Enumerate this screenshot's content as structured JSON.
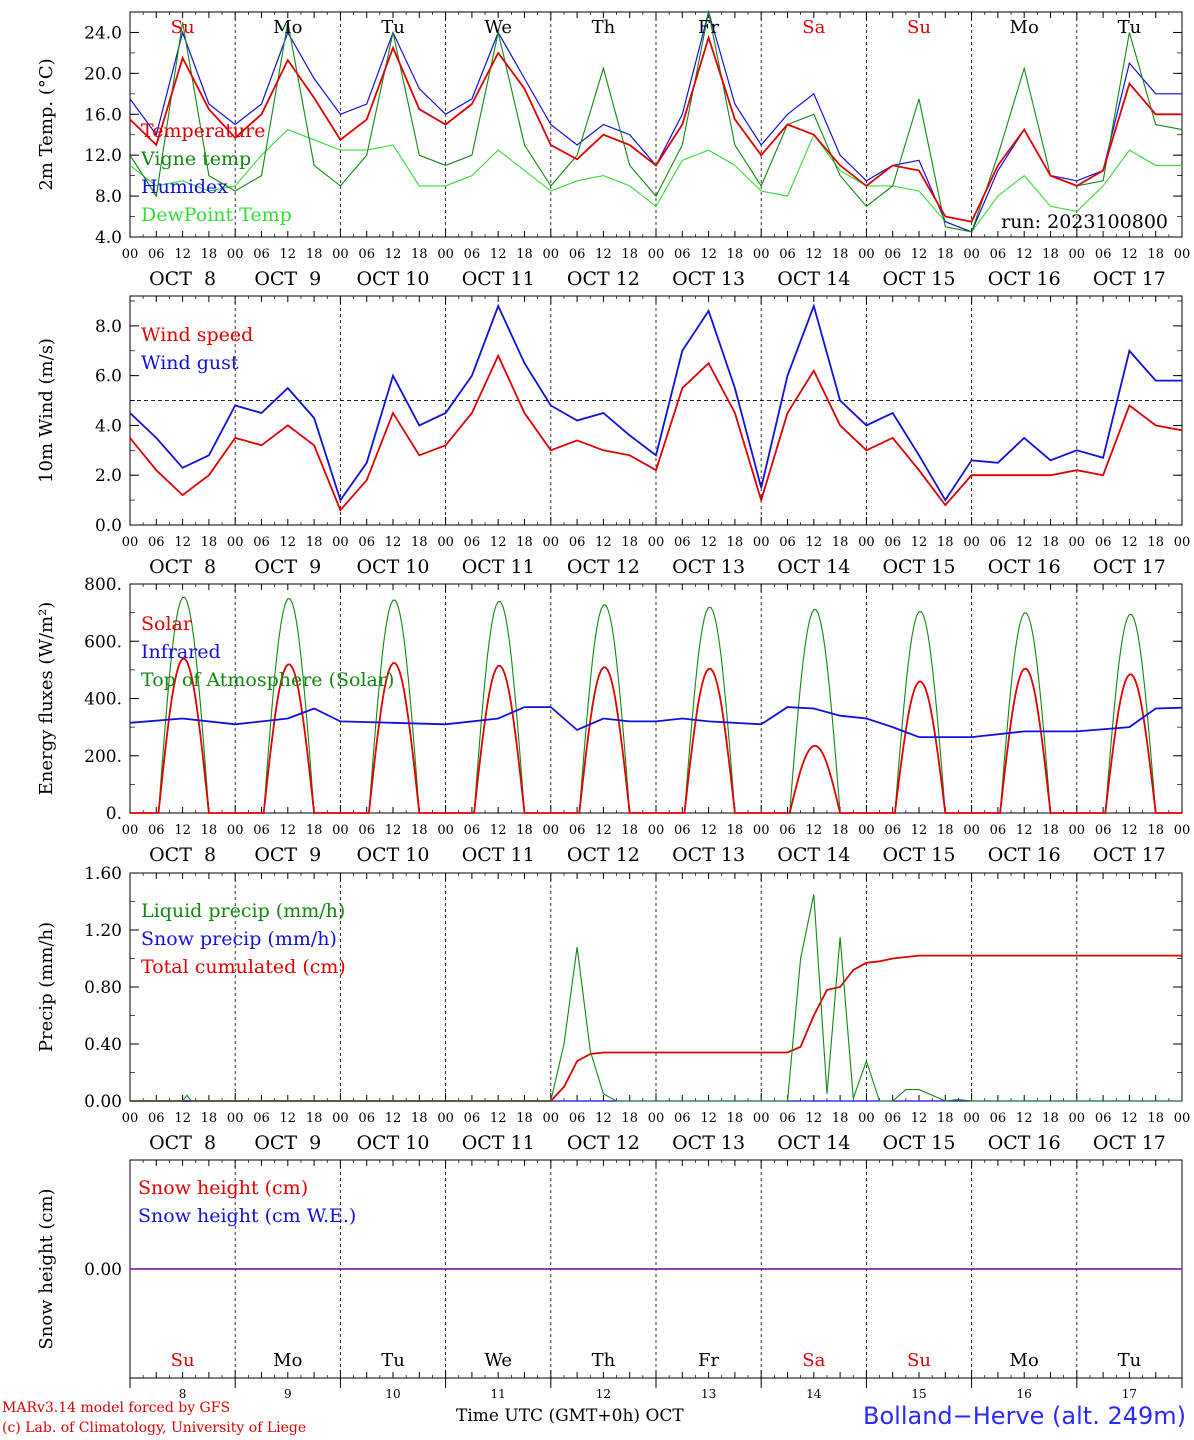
{
  "colors": {
    "red": "#e00000",
    "green": "#118811",
    "blue": "#1010dd",
    "lightgreen": "#33dd33",
    "purple": "#8822aa",
    "black": "#000000",
    "station": "#2a2aff"
  },
  "time_axis": {
    "hour_ticks": [
      "00",
      "06",
      "12",
      "18"
    ],
    "date_labels": [
      "OCT  8",
      "OCT  9",
      "OCT 10",
      "OCT 11",
      "OCT 12",
      "OCT 13",
      "OCT 14",
      "OCT 15",
      "OCT 16",
      "OCT 17"
    ],
    "weekdays": [
      "Su",
      "Mo",
      "Tu",
      "We",
      "Th",
      "Fr",
      "Sa",
      "Su",
      "Mo",
      "Tu"
    ],
    "weekday_colors": [
      "red",
      "black",
      "black",
      "black",
      "black",
      "black",
      "red",
      "red",
      "black",
      "black"
    ],
    "day_numbers": [
      "8",
      "9",
      "10",
      "11",
      "12",
      "13",
      "14",
      "15",
      "16",
      "17"
    ]
  },
  "chart_data": [
    {
      "type": "line",
      "id": "temp",
      "ylabel": "2m Temp. (°C)",
      "ylim": [
        4,
        26
      ],
      "yticks": [
        4,
        8,
        12,
        16,
        20,
        24
      ],
      "ytick_labels": [
        "4.0",
        "8.0",
        "12.0",
        "16.0",
        "20.0",
        "24.0"
      ],
      "annotation": "run: 2023100800",
      "x_unit": "hours since 2023-10-08 00 UTC",
      "series": [
        {
          "name": "Temperature",
          "color": "red",
          "x": [
            0,
            6,
            12,
            18,
            24,
            30,
            36,
            42,
            48,
            54,
            60,
            66,
            72,
            78,
            84,
            90,
            96,
            102,
            108,
            114,
            120,
            126,
            132,
            138,
            144,
            150,
            156,
            162,
            168,
            174,
            180,
            186,
            192,
            198,
            204,
            210,
            216,
            222,
            228,
            234,
            240
          ],
          "y": [
            15.5,
            13,
            21.5,
            16.5,
            13.7,
            16,
            21.3,
            17.6,
            13.5,
            15.5,
            22.5,
            16.5,
            15,
            17,
            22,
            18.5,
            13,
            11.6,
            14,
            13,
            11,
            15,
            23.5,
            15.5,
            12,
            15,
            14,
            11,
            9,
            11,
            10.5,
            6,
            5.5,
            11,
            14.5,
            10,
            9,
            10.5,
            19,
            16,
            16
          ]
        },
        {
          "name": "Vigne temp",
          "color": "green",
          "x": [
            0,
            6,
            12,
            18,
            24,
            30,
            36,
            42,
            48,
            54,
            60,
            66,
            72,
            78,
            84,
            90,
            96,
            102,
            108,
            114,
            120,
            126,
            132,
            138,
            144,
            150,
            156,
            162,
            168,
            174,
            180,
            186,
            192,
            198,
            204,
            210,
            216,
            222,
            228,
            234,
            240
          ],
          "y": [
            12,
            8,
            25,
            10,
            8.5,
            10,
            25,
            11,
            9,
            12,
            24,
            12,
            11,
            12,
            24,
            13,
            9,
            12,
            20.5,
            11,
            8,
            13,
            26,
            13,
            9,
            15,
            16,
            10,
            7,
            9,
            17.5,
            5,
            4.5,
            12,
            20.5,
            10,
            9,
            9.5,
            24,
            15,
            14.5
          ]
        },
        {
          "name": "Humidex",
          "color": "blue",
          "x": [
            0,
            6,
            12,
            18,
            24,
            30,
            36,
            42,
            48,
            54,
            60,
            66,
            72,
            78,
            84,
            90,
            96,
            102,
            108,
            114,
            120,
            126,
            132,
            138,
            144,
            150,
            156,
            162,
            168,
            174,
            180,
            186,
            192,
            198,
            204,
            210,
            216,
            222,
            228,
            234,
            240
          ],
          "y": [
            17.5,
            14,
            24,
            17,
            15,
            17,
            24,
            19.5,
            16,
            17,
            24,
            18.5,
            16,
            17.5,
            24,
            19.5,
            15,
            13,
            15,
            14,
            11,
            16,
            26,
            17,
            13,
            16,
            18,
            12,
            9.5,
            11,
            11.5,
            5.5,
            4.5,
            10.5,
            14.5,
            10,
            9.5,
            10.5,
            21,
            18,
            18
          ]
        },
        {
          "name": "DewPoint Temp",
          "color": "lightgreen",
          "x": [
            0,
            6,
            12,
            18,
            24,
            30,
            36,
            42,
            48,
            54,
            60,
            66,
            72,
            78,
            84,
            90,
            96,
            102,
            108,
            114,
            120,
            126,
            132,
            138,
            144,
            150,
            156,
            162,
            168,
            174,
            180,
            186,
            192,
            198,
            204,
            210,
            216,
            222,
            228,
            234,
            240
          ],
          "y": [
            11,
            9,
            9.5,
            8.5,
            9,
            12,
            14.5,
            13.5,
            12.5,
            12.5,
            13,
            9,
            9,
            10,
            12.5,
            10.5,
            8.5,
            9.5,
            10,
            9,
            7,
            11.5,
            12.5,
            11,
            8.5,
            8,
            14,
            10.5,
            9,
            9,
            8.5,
            5.5,
            4.5,
            8,
            10,
            7,
            6.5,
            9,
            12.5,
            11,
            11
          ]
        }
      ]
    },
    {
      "type": "line",
      "id": "wind",
      "ylabel": "10m Wind (m/s)",
      "ylim": [
        0,
        9.2
      ],
      "yticks": [
        0,
        2,
        4,
        6,
        8
      ],
      "ytick_labels": [
        "0.0",
        "2.0",
        "4.0",
        "6.0",
        "8.0"
      ],
      "reference_line": 5,
      "x_unit": "hours since 2023-10-08 00 UTC",
      "series": [
        {
          "name": "Wind speed",
          "color": "red",
          "x": [
            0,
            6,
            12,
            18,
            24,
            30,
            36,
            42,
            48,
            54,
            60,
            66,
            72,
            78,
            84,
            90,
            96,
            102,
            108,
            114,
            120,
            126,
            132,
            138,
            144,
            150,
            156,
            162,
            168,
            174,
            180,
            186,
            192,
            198,
            204,
            210,
            216,
            222,
            228,
            234,
            240
          ],
          "y": [
            3.5,
            2.2,
            1.2,
            2,
            3.5,
            3.2,
            4,
            3.2,
            0.6,
            1.8,
            4.5,
            2.8,
            3.2,
            4.5,
            6.8,
            4.5,
            3,
            3.4,
            3,
            2.8,
            2.2,
            5.5,
            6.5,
            4.5,
            1,
            4.5,
            6.2,
            4,
            3,
            3.5,
            2.2,
            0.8,
            2,
            2,
            2,
            2,
            2.2,
            2,
            4.8,
            4,
            3.8
          ]
        },
        {
          "name": "Wind gust",
          "color": "blue",
          "x": [
            0,
            6,
            12,
            18,
            24,
            30,
            36,
            42,
            48,
            54,
            60,
            66,
            72,
            78,
            84,
            90,
            96,
            102,
            108,
            114,
            120,
            126,
            132,
            138,
            144,
            150,
            156,
            162,
            168,
            174,
            180,
            186,
            192,
            198,
            204,
            210,
            216,
            222,
            228,
            234,
            240
          ],
          "y": [
            4.5,
            3.5,
            2.3,
            2.8,
            4.8,
            4.5,
            5.5,
            4.3,
            1,
            2.5,
            6,
            4,
            4.5,
            6,
            8.8,
            6.5,
            4.8,
            4.2,
            4.5,
            3.6,
            2.8,
            7,
            8.6,
            5.5,
            1.5,
            6,
            8.8,
            5,
            4,
            4.5,
            2.8,
            1,
            2.6,
            2.5,
            3.5,
            2.6,
            3,
            2.7,
            7,
            5.8,
            5.8
          ]
        }
      ]
    },
    {
      "type": "line",
      "id": "flux",
      "ylabel": "Energy fluxes (W/m²)",
      "ylim": [
        0,
        800
      ],
      "yticks": [
        0,
        200,
        400,
        600,
        800
      ],
      "ytick_labels": [
        "0.",
        "200.",
        "400.",
        "600.",
        "800."
      ],
      "x_unit": "hours since 2023-10-08 00 UTC",
      "diurnal": {
        "sunrise_hour": 6.5,
        "sunset_hour": 18,
        "top_of_atmosphere_peak": [
          755,
          750,
          745,
          740,
          728,
          720,
          712,
          705,
          700,
          695
        ],
        "solar_peak": [
          540,
          520,
          525,
          515,
          510,
          505,
          235,
          460,
          505,
          485
        ]
      },
      "series": [
        {
          "name": "Solar",
          "color": "red"
        },
        {
          "name": "Infrared",
          "color": "blue",
          "x": [
            0,
            12,
            24,
            36,
            42,
            48,
            60,
            72,
            84,
            90,
            96,
            102,
            108,
            114,
            120,
            126,
            132,
            144,
            150,
            156,
            162,
            168,
            174,
            180,
            192,
            204,
            216,
            228,
            234,
            240
          ],
          "y": [
            315,
            330,
            310,
            330,
            365,
            320,
            315,
            310,
            330,
            370,
            370,
            290,
            330,
            320,
            320,
            330,
            320,
            310,
            370,
            365,
            340,
            330,
            300,
            265,
            265,
            285,
            285,
            300,
            365,
            368
          ]
        },
        {
          "name": "Top of Atmosphere (Solar)",
          "color": "green"
        }
      ]
    },
    {
      "type": "line",
      "id": "precip",
      "ylabel": "Precip (mm/h)",
      "ylim": [
        0,
        1.6
      ],
      "yticks": [
        0,
        0.4,
        0.8,
        1.2,
        1.6
      ],
      "ytick_labels": [
        "0.00",
        "0.40",
        "0.80",
        "1.20",
        "1.60"
      ],
      "x_unit": "hours since 2023-10-08 00 UTC",
      "series": [
        {
          "name": "Liquid precip (mm/h)",
          "color": "green",
          "x": [
            0,
            12,
            13,
            14,
            72,
            96,
            99,
            102,
            105,
            108,
            111,
            150,
            153,
            156,
            159,
            162,
            165,
            168,
            171,
            174,
            177,
            180,
            186,
            189,
            192,
            240
          ],
          "y": [
            0,
            0,
            0.04,
            0,
            0,
            0,
            0.4,
            1.08,
            0.35,
            0.05,
            0,
            0,
            1.0,
            1.45,
            0.05,
            1.15,
            0.02,
            0.28,
            0,
            0,
            0.08,
            0.08,
            0,
            0.01,
            0,
            0
          ]
        },
        {
          "name": "Snow precip (mm/h)",
          "color": "blue",
          "x": [
            0,
            240
          ],
          "y": [
            0,
            0
          ]
        },
        {
          "name": "Total cumulated (cm)",
          "color": "red",
          "x": [
            0,
            96,
            99,
            102,
            105,
            108,
            150,
            153,
            156,
            159,
            162,
            165,
            168,
            171,
            174,
            180,
            186,
            240
          ],
          "y": [
            0,
            0,
            0.1,
            0.28,
            0.33,
            0.34,
            0.34,
            0.38,
            0.6,
            0.78,
            0.8,
            0.92,
            0.97,
            0.98,
            1.0,
            1.02,
            1.02,
            1.02
          ]
        }
      ]
    },
    {
      "type": "line",
      "id": "snow",
      "ylabel": "Snow height (cm)",
      "ylim": [
        -1,
        1
      ],
      "yticks": [
        0
      ],
      "ytick_labels": [
        "0.00"
      ],
      "x_unit": "hours since 2023-10-08 00 UTC",
      "series": [
        {
          "name": "Snow height (cm)",
          "color": "red",
          "x": [
            0,
            240
          ],
          "y": [
            0,
            0
          ]
        },
        {
          "name": "Snow height (cm W.E.)",
          "color": "blue",
          "x": [
            0,
            240
          ],
          "y": [
            0,
            0
          ]
        }
      ]
    }
  ],
  "footer": {
    "credit_line1": "MARv3.14 model forced by GFS",
    "credit_line2": "(c) Lab. of Climatology, University of Liege",
    "xlabel": "Time UTC (GMT+0h) OCT",
    "station": "Bolland−Herve (alt. 249m)"
  }
}
